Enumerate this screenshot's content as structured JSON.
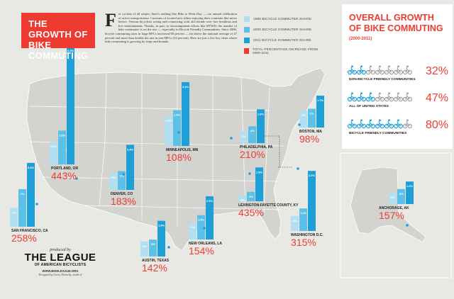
{
  "title": "THE GROWTH OF BIKE COMMUTING",
  "intro": {
    "dropcap": "F",
    "text": "or cyclists of all stripes, there's nothing like Bike to Work Day — our annual celebration of active transportation. Caravans of excited new riders enjoying their commute like never before. Veteran bicyclists seeing and connecting with old friends over free breakfast and live entertainment. Thanks, in part, to encouragement efforts like BTWD, the number of bike commuters is on the rise — especially in Bicycle Friendly Communities. Since 2000, bicycle commuting rates in large BFCs increased 80 percent — far above the national average of 47 percent and more than double the rate in non-BFCs (32 percent). Here are just a few key cities where bike commuting is growing by leaps and bounds."
  },
  "legend": [
    {
      "label": "1990 BICYCLE COMMUTER SHARE",
      "color": "#b3dff2"
    },
    {
      "label": "2000 BICYCLE COMMUTER SHARE",
      "color": "#5bc1e8"
    },
    {
      "label": "2011 BICYCLE COMMUTER SHARE",
      "color": "#1f9fd8"
    },
    {
      "label": "TOTAL PERCENTAGE INCREASE FROM 1990-2011",
      "color": "#ee3b32"
    }
  ],
  "overall": {
    "title": "OVERALL GROWTH OF BIKE COMMUTING",
    "subtitle": "(2000-2011)",
    "rows": [
      {
        "label": "NON-BICYCLE FRIENDLY COMMUNITIES",
        "pct": "32%",
        "colored": 2
      },
      {
        "label": "ALL OF UNITED STATES",
        "pct": "47%",
        "colored": 3
      },
      {
        "label": "BICYCLE FRIENDLY COMMUNITIES",
        "pct": "80%",
        "colored": 6
      }
    ]
  },
  "league": {
    "produced": "produced by",
    "name": "THE LEAGUE",
    "sub": "OF AMERICAN BICYCLISTS",
    "url": "WWW.BIKELEAGUE.ORG",
    "credit": "Designed by Garry Donnelly, studio d"
  },
  "colors": {
    "y1990": "#b3dff2",
    "y2000": "#5bc1e8",
    "y2011": "#1f9fd8",
    "accent": "#ee3b32",
    "map": "#d3d4cf"
  },
  "chart_data": {
    "type": "bar",
    "title": "THE GROWTH OF BIKE COMMUTING",
    "series_years": [
      "1990",
      "2000",
      "2011"
    ],
    "cities": [
      {
        "name": "SAN FRANCISCO, CA",
        "values": [
          1.0,
          2.0,
          3.4
        ],
        "labels": [
          "1%",
          "2%",
          "3.4%"
        ],
        "increase": "258%"
      },
      {
        "name": "PORTLAND, OR",
        "values": [
          1.2,
          1.8,
          6.3
        ],
        "labels": [
          "1.2%",
          "1.8%",
          "6.3%"
        ],
        "increase": "443%"
      },
      {
        "name": "DENVER, CO",
        "values": [
          0.9,
          1.0,
          2.4
        ],
        "labels": [
          ".9%",
          "1%",
          "2.4%"
        ],
        "increase": "183%"
      },
      {
        "name": "MINNEAPOLIS, MN",
        "values": [
          1.6,
          1.9,
          3.4
        ],
        "labels": [
          "1.6%",
          "1.9%",
          "3.4%"
        ],
        "increase": "108%"
      },
      {
        "name": "PHILADELPHIA, PA",
        "values": [
          0.6,
          0.9,
          1.8
        ],
        "labels": [
          ".6%",
          ".9%",
          "1.8%"
        ],
        "increase": "210%"
      },
      {
        "name": "BOSTON, MA",
        "values": [
          0.9,
          1.0,
          1.7
        ],
        "labels": [
          ".9%",
          "1%",
          "1.7%"
        ],
        "increase": "98%"
      },
      {
        "name": "LEXINGTON-FAYETTE COUNTY, KY",
        "values": [
          0.3,
          0.5,
          1.8
        ],
        "labels": [
          ".3%",
          ".5%",
          "1.8%"
        ],
        "increase": "435%"
      },
      {
        "name": "WASHINGTON D.C.",
        "values": [
          0.8,
          1.2,
          3.2
        ],
        "labels": [
          ".8%",
          "1.2%",
          "3.2%"
        ],
        "increase": "315%"
      },
      {
        "name": "NEW ORLEANS, LA",
        "values": [
          0.9,
          1.3,
          2.3
        ],
        "labels": [
          ".9%",
          "1.3%",
          "2.3%"
        ],
        "increase": "154%"
      },
      {
        "name": "AUSTIN, TEXAS",
        "values": [
          0.8,
          0.9,
          1.9
        ],
        "labels": [
          ".8%",
          ".9%",
          "1.9%"
        ],
        "increase": "142%"
      },
      {
        "name": "ANCHORAGE, AK",
        "values": [
          0.6,
          0.8,
          1.2
        ],
        "labels": [
          ".6%",
          ".8%",
          "1.2%"
        ],
        "increase": "157%"
      }
    ]
  }
}
